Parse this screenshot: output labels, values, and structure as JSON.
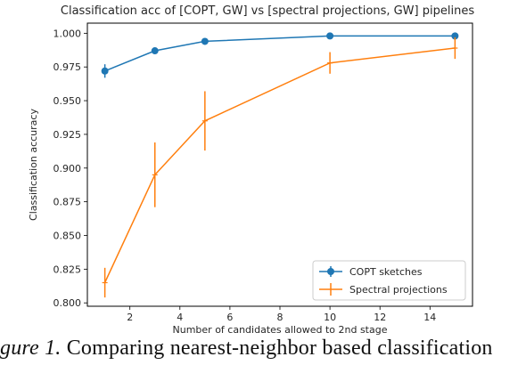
{
  "chart_data": {
    "type": "line",
    "title": "Classification acc of [COPT, GW] vs [spectral projections, GW] pipelines",
    "xlabel": "Number of candidates allowed to 2nd stage",
    "ylabel": "Classification accuracy",
    "xlim": [
      0.3,
      15.7
    ],
    "ylim": [
      0.7975,
      1.0075
    ],
    "xticks": [
      2,
      4,
      6,
      8,
      10,
      12,
      14
    ],
    "yticks": [
      0.8,
      0.825,
      0.85,
      0.875,
      0.9,
      0.925,
      0.95,
      0.975,
      1.0
    ],
    "ytick_labels": [
      "0.800",
      "0.825",
      "0.850",
      "0.875",
      "0.900",
      "0.925",
      "0.950",
      "0.975",
      "1.000"
    ],
    "grid": false,
    "legend_position": "lower-right",
    "series": [
      {
        "name": "COPT sketches",
        "color": "#1f77b4",
        "marker": "circle",
        "x": [
          1,
          3,
          5,
          10,
          15
        ],
        "y": [
          0.972,
          0.987,
          0.994,
          0.998,
          0.998
        ],
        "err": [
          0.005,
          0.002,
          0.001,
          0.002,
          0.002
        ]
      },
      {
        "name": "Spectral projections",
        "color": "#ff7f0e",
        "marker": "plus",
        "x": [
          1,
          3,
          5,
          10,
          15
        ],
        "y": [
          0.815,
          0.895,
          0.935,
          0.978,
          0.989
        ],
        "err": [
          0.011,
          0.024,
          0.022,
          0.008,
          0.008
        ]
      }
    ]
  },
  "caption": {
    "lead": "gure 1.",
    "text": " Comparing  nearest-neighbor  based  classification"
  }
}
